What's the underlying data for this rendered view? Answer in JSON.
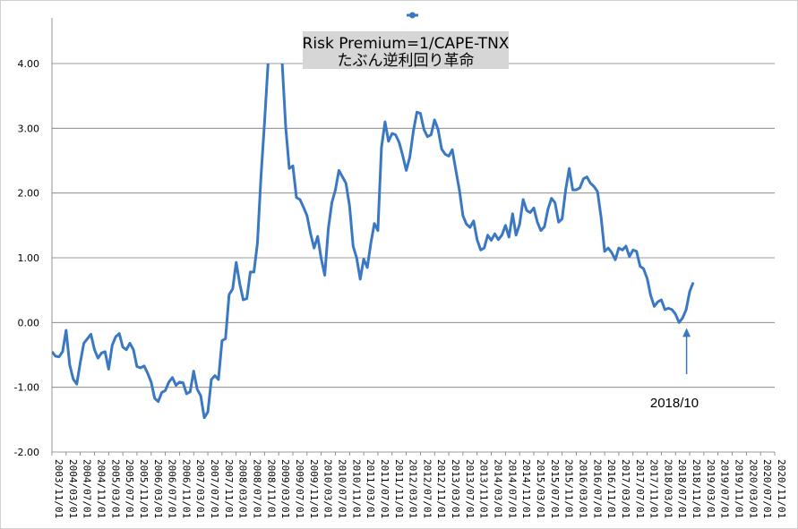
{
  "chart_data": {
    "type": "line",
    "title": "Risk Premium=1/CAPE-TNX",
    "subtitle": "たぶん逆利回り革命",
    "xlabel": "",
    "ylabel": "",
    "ylim": [
      -2.0,
      4.0
    ],
    "y_tick_labels": [
      "4.00",
      "3.00",
      "2.00",
      "1.00",
      "0.00",
      "-1.00",
      "-2.00"
    ],
    "y_tick_values": [
      4,
      3,
      2,
      1,
      0,
      -1,
      -2
    ],
    "x_tick_labels": [
      "2003/11/01",
      "2004/03/01",
      "2004/07/01",
      "2004/11/01",
      "2005/03/01",
      "2005/07/01",
      "2005/11/01",
      "2006/03/01",
      "2006/07/01",
      "2006/11/01",
      "2007/03/01",
      "2007/07/01",
      "2007/11/01",
      "2008/03/01",
      "2008/07/01",
      "2008/11/01",
      "2009/03/01",
      "2009/07/01",
      "2009/11/01",
      "2010/03/01",
      "2010/07/01",
      "2010/11/01",
      "2011/03/01",
      "2011/07/01",
      "2011/11/01",
      "2012/03/01",
      "2012/07/01",
      "2012/11/01",
      "2013/03/01",
      "2013/07/01",
      "2013/11/01",
      "2014/03/01",
      "2014/07/01",
      "2014/11/01",
      "2015/03/01",
      "2015/07/01",
      "2015/11/01",
      "2016/03/01",
      "2016/07/01",
      "2016/11/01",
      "2017/03/01",
      "2017/07/01",
      "2017/11/01",
      "2018/03/01",
      "2018/07/01",
      "2018/11/01",
      "2019/03/01",
      "2019/07/01",
      "2019/11/01",
      "2020/03/01",
      "2020/07/01",
      "2020/11/01"
    ],
    "grid": true,
    "legend": "top-center",
    "series": [
      {
        "color": "#3a78c3",
        "start": "2003/11",
        "frequency": "monthly",
        "values": [
          -0.45,
          -0.52,
          -0.53,
          -0.45,
          -0.12,
          -0.65,
          -0.87,
          -0.95,
          -0.62,
          -0.32,
          -0.25,
          -0.18,
          -0.42,
          -0.55,
          -0.47,
          -0.45,
          -0.72,
          -0.35,
          -0.22,
          -0.17,
          -0.38,
          -0.42,
          -0.32,
          -0.42,
          -0.68,
          -0.7,
          -0.67,
          -0.78,
          -0.92,
          -1.17,
          -1.22,
          -1.08,
          -1.05,
          -0.92,
          -0.85,
          -0.97,
          -0.92,
          -0.93,
          -1.1,
          -1.07,
          -0.75,
          -1.03,
          -1.13,
          -1.47,
          -1.38,
          -0.88,
          -0.82,
          -0.88,
          -0.28,
          -0.25,
          0.43,
          0.52,
          0.93,
          0.6,
          0.35,
          0.37,
          0.78,
          0.78,
          1.22,
          2.25,
          3.1,
          4.0,
          4.2,
          4.4,
          4.3,
          4.0,
          3.0,
          2.38,
          2.42,
          1.93,
          1.9,
          1.78,
          1.65,
          1.37,
          1.15,
          1.33,
          0.99,
          0.73,
          1.45,
          1.85,
          2.05,
          2.35,
          2.25,
          2.15,
          1.8,
          1.18,
          1.0,
          0.67,
          0.98,
          0.85,
          1.22,
          1.53,
          1.42,
          2.7,
          3.1,
          2.8,
          2.92,
          2.9,
          2.78,
          2.58,
          2.35,
          2.55,
          2.95,
          3.25,
          3.23,
          2.98,
          2.87,
          2.9,
          3.13,
          2.98,
          2.68,
          2.6,
          2.57,
          2.67,
          2.35,
          2.05,
          1.65,
          1.52,
          1.47,
          1.57,
          1.28,
          1.12,
          1.15,
          1.35,
          1.27,
          1.37,
          1.28,
          1.35,
          1.5,
          1.32,
          1.68,
          1.35,
          1.52,
          1.9,
          1.73,
          1.7,
          1.77,
          1.55,
          1.42,
          1.48,
          1.75,
          1.92,
          1.85,
          1.55,
          1.6,
          2.05,
          2.38,
          2.05,
          2.05,
          2.08,
          2.22,
          2.25,
          2.15,
          2.1,
          2.02,
          1.62,
          1.1,
          1.15,
          1.08,
          0.97,
          1.15,
          1.12,
          1.18,
          1.02,
          1.12,
          1.1,
          0.87,
          0.83,
          0.68,
          0.42,
          0.25,
          0.32,
          0.35,
          0.2,
          0.22,
          0.2,
          0.13,
          0.0,
          0.07,
          0.2,
          0.48,
          0.62
        ]
      }
    ],
    "annotations": [
      {
        "text": "2018/10",
        "target_x": "2018/10",
        "target_y": 0.0,
        "arrow": "up"
      }
    ]
  },
  "legend": {
    "marker": "series-marker"
  }
}
